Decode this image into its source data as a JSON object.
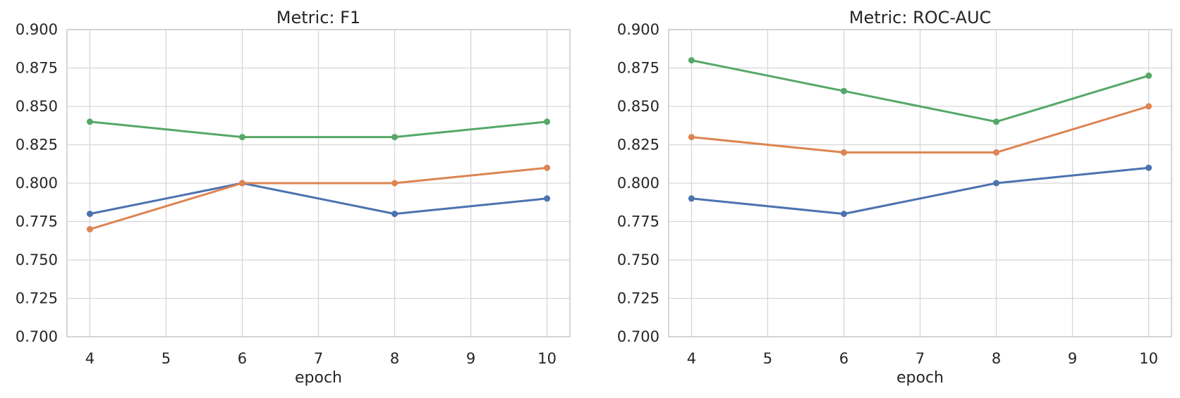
{
  "figure": {
    "background": "#ffffff",
    "text_color": "#262626",
    "grid_color": "#d6d6d6",
    "spine_color": "#cbcbcb"
  },
  "chart_data": [
    {
      "type": "line",
      "title": "Metric: F1",
      "xlabel": "epoch",
      "ylabel": "",
      "x": [
        4,
        6,
        8,
        10
      ],
      "series": [
        {
          "name": "blue-series",
          "color": "#4C72B0",
          "values": [
            0.78,
            0.8,
            0.78,
            0.79
          ]
        },
        {
          "name": "orange-series",
          "color": "#DD8452",
          "values": [
            0.77,
            0.8,
            0.8,
            0.81
          ]
        },
        {
          "name": "green-series",
          "color": "#55A868",
          "values": [
            0.84,
            0.83,
            0.83,
            0.84
          ]
        }
      ],
      "xlim": [
        3.7,
        10.3
      ],
      "ylim": [
        0.7,
        0.9
      ],
      "xticks": [
        4,
        5,
        6,
        7,
        8,
        9,
        10
      ],
      "yticks": [
        0.7,
        0.725,
        0.75,
        0.775,
        0.8,
        0.825,
        0.85,
        0.875,
        0.9
      ],
      "ytick_decimals": 3,
      "grid": true,
      "legend": "none",
      "markers": "circle"
    },
    {
      "type": "line",
      "title": "Metric: ROC-AUC",
      "xlabel": "epoch",
      "ylabel": "",
      "x": [
        4,
        6,
        8,
        10
      ],
      "series": [
        {
          "name": "blue-series",
          "color": "#4C72B0",
          "values": [
            0.79,
            0.78,
            0.8,
            0.81
          ]
        },
        {
          "name": "orange-series",
          "color": "#DD8452",
          "values": [
            0.83,
            0.82,
            0.82,
            0.85
          ]
        },
        {
          "name": "green-series",
          "color": "#55A868",
          "values": [
            0.88,
            0.86,
            0.84,
            0.87
          ]
        }
      ],
      "xlim": [
        3.7,
        10.3
      ],
      "ylim": [
        0.7,
        0.9
      ],
      "xticks": [
        4,
        5,
        6,
        7,
        8,
        9,
        10
      ],
      "yticks": [
        0.7,
        0.725,
        0.75,
        0.775,
        0.8,
        0.825,
        0.85,
        0.875,
        0.9
      ],
      "ytick_decimals": 3,
      "grid": true,
      "legend": "none",
      "markers": "circle"
    }
  ]
}
